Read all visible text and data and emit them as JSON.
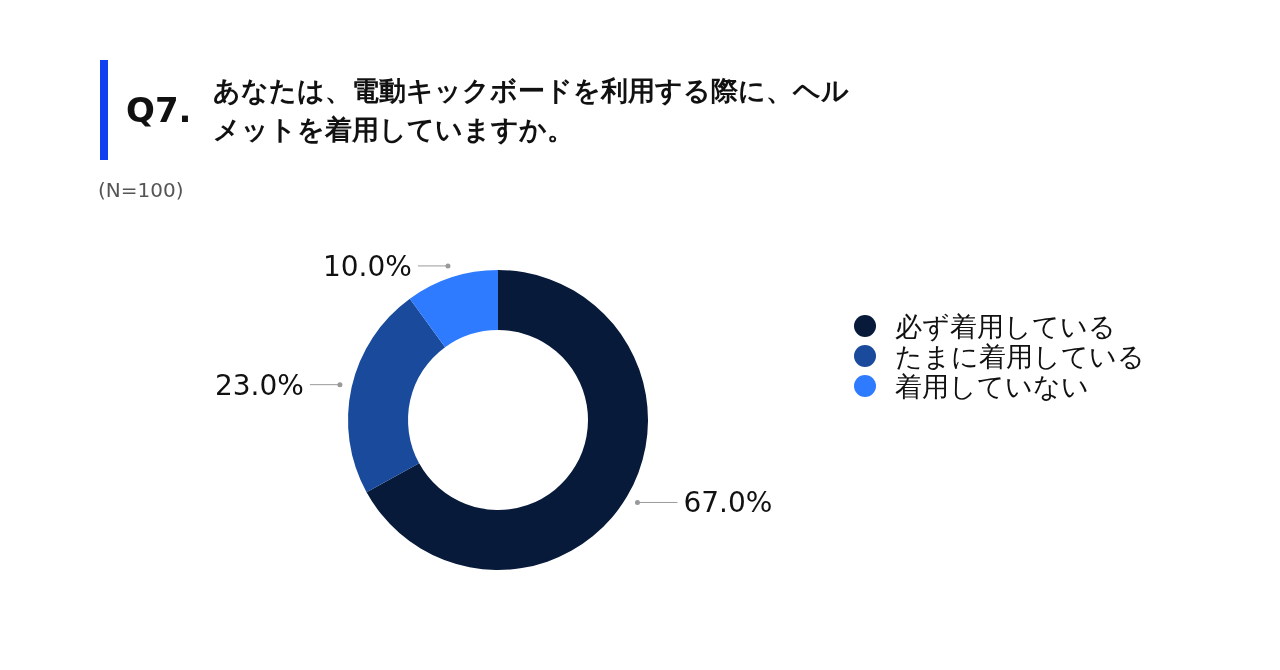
{
  "chart_data": {
    "type": "donut",
    "title": "Q7.",
    "subtitle": "あなたは、電動キックボードを利用する際に、ヘルメットを着用していますか。",
    "annotations": [
      "(N=100)"
    ],
    "categories": [
      "必ず着用している",
      "たまに着用している",
      "着用していない"
    ],
    "values": [
      67,
      23,
      10
    ],
    "value_labels": [
      "67.0%",
      "23.0%",
      "10.0%"
    ],
    "colors": [
      "#071a3a",
      "#1a4a9c",
      "#2f7bff"
    ],
    "legend": "right"
  }
}
